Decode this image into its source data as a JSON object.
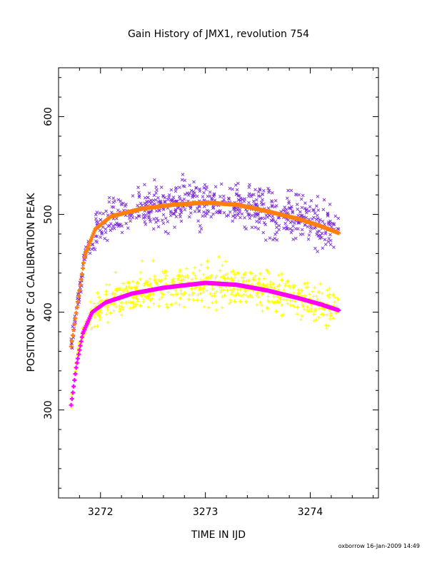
{
  "chart_data": {
    "type": "scatter",
    "title": "Gain History of JMX1, revolution 754",
    "xlabel": "TIME IN IJD",
    "ylabel": "POSITION OF Cd CALIBRATION PEAK",
    "xlim": [
      3271.6,
      3274.65
    ],
    "ylim": [
      210,
      650
    ],
    "x_ticks": [
      3272,
      3273,
      3274
    ],
    "y_ticks": [
      300,
      400,
      500,
      600
    ],
    "grid": false,
    "footer": "oxborrow 16-Jan-2009 14:49",
    "series": [
      {
        "marker": "x",
        "color": "#7b2cd6",
        "trend_color": "#ff7f0e",
        "fit": {
          "start": 3271.72,
          "end": 3274.27,
          "points": [
            [
              3271.72,
              365
            ],
            [
              3271.78,
              408
            ],
            [
              3271.85,
              458
            ],
            [
              3271.95,
              485
            ],
            [
              3272.1,
              498
            ],
            [
              3272.4,
              506
            ],
            [
              3272.7,
              510
            ],
            [
              3273.0,
              512
            ],
            [
              3273.3,
              510
            ],
            [
              3273.6,
              503
            ],
            [
              3273.9,
              495
            ],
            [
              3274.1,
              488
            ],
            [
              3274.27,
              481
            ]
          ]
        },
        "scatter_spread": 22
      },
      {
        "marker": "+",
        "color": "#ffff00",
        "trend_color": "#ff00ff",
        "fit": {
          "start": 3271.72,
          "end": 3274.27,
          "points": [
            [
              3271.72,
              305
            ],
            [
              3271.77,
              345
            ],
            [
              3271.83,
              378
            ],
            [
              3271.92,
              400
            ],
            [
              3272.05,
              410
            ],
            [
              3272.3,
              419
            ],
            [
              3272.6,
              425
            ],
            [
              3273.0,
              430
            ],
            [
              3273.3,
              428
            ],
            [
              3273.6,
              422
            ],
            [
              3273.9,
              414
            ],
            [
              3274.1,
              408
            ],
            [
              3274.27,
              402
            ]
          ]
        },
        "scatter_spread": 20
      }
    ]
  }
}
